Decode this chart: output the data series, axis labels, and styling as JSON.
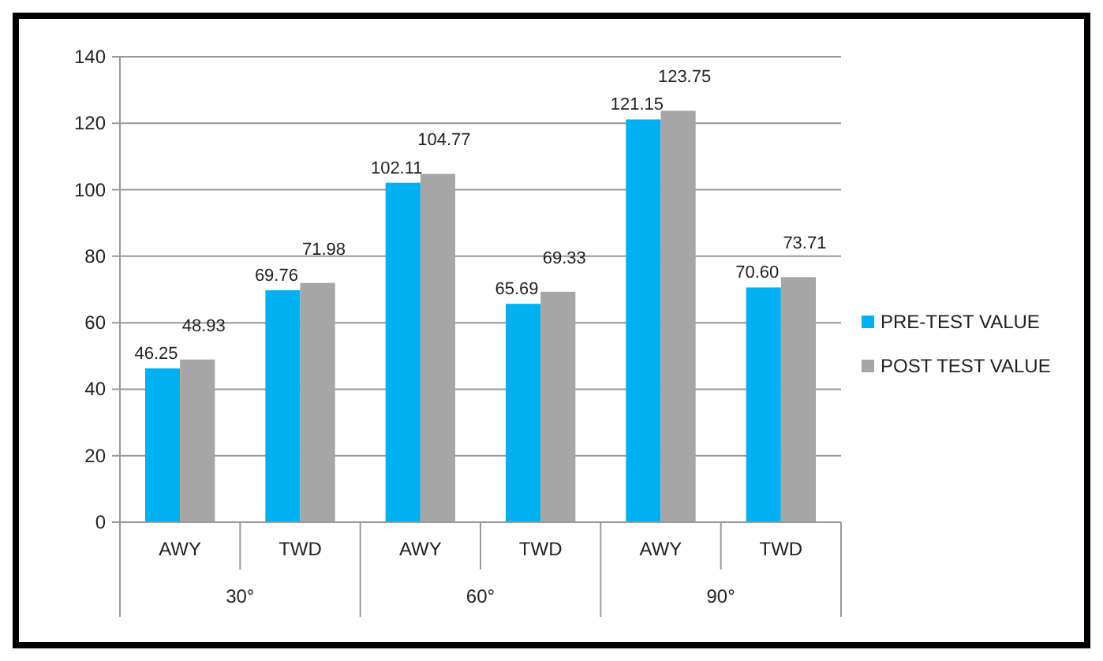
{
  "chart_data": {
    "type": "bar",
    "categories": [
      "AWY",
      "TWD",
      "AWY",
      "TWD",
      "AWY",
      "TWD"
    ],
    "annotations": [
      "30°",
      "60°",
      "90°"
    ],
    "series": [
      {
        "name": "PRE-TEST VALUE",
        "color": "#00b0f0",
        "values": [
          46.25,
          69.76,
          102.11,
          65.69,
          121.15,
          70.6
        ],
        "value_labels": [
          "46.25",
          "69.76",
          "102.11",
          "65.69",
          "121.15",
          "70.60"
        ]
      },
      {
        "name": "POST TEST VALUE",
        "color": "#a6a6a6",
        "values": [
          48.93,
          71.98,
          104.77,
          69.33,
          123.75,
          73.71
        ],
        "value_labels": [
          "48.93",
          "71.98",
          "104.77",
          "69.33",
          "123.75",
          "73.71"
        ]
      }
    ],
    "ylim": [
      0,
      140
    ],
    "yticks": [
      0,
      20,
      40,
      60,
      80,
      100,
      120,
      140
    ],
    "grid": "y",
    "legend": "right"
  }
}
